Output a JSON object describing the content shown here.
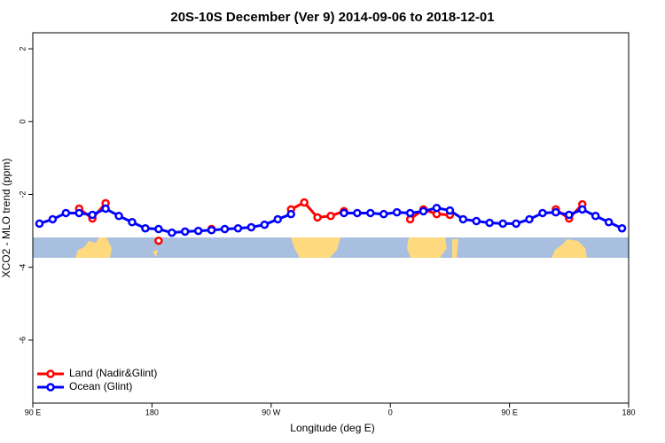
{
  "chart_data": {
    "type": "line",
    "title": "20S-10S December (Ver 9)   2014-09-06 to 2018-12-01",
    "x_label": "Longitude (deg E)",
    "y_label": "XCO2 - MLO trend (ppm)",
    "x": [
      95,
      105,
      115,
      125,
      135,
      145,
      155,
      165,
      175,
      185,
      195,
      205,
      215,
      225,
      235,
      245,
      255,
      265,
      275,
      285,
      295,
      305,
      315,
      325,
      335,
      345,
      355,
      365,
      375,
      385,
      395,
      405,
      415,
      425,
      435,
      445,
      455,
      465,
      475,
      485,
      495,
      505,
      515,
      525,
      535
    ],
    "series": [
      {
        "name": "Land (Nadir&Glint)",
        "color": "#ff0000",
        "values": [
          null,
          null,
          null,
          -2.39,
          -2.66,
          -2.24,
          null,
          null,
          null,
          -3.27,
          null,
          null,
          null,
          -2.95,
          null,
          null,
          null,
          null,
          null,
          -2.41,
          -2.22,
          -2.63,
          -2.59,
          -2.46,
          null,
          null,
          null,
          null,
          -2.68,
          -2.41,
          -2.54,
          -2.56,
          null,
          null,
          null,
          null,
          null,
          null,
          null,
          -2.41,
          -2.66,
          -2.27,
          null,
          null,
          null
        ]
      },
      {
        "name": "Ocean (Glint)",
        "color": "#0000ff",
        "values": [
          -2.8,
          -2.68,
          -2.51,
          -2.51,
          -2.56,
          -2.39,
          -2.59,
          -2.76,
          -2.93,
          -2.95,
          -3.05,
          -3.02,
          -3.0,
          -2.98,
          -2.95,
          -2.93,
          -2.9,
          -2.83,
          -2.68,
          -2.54,
          null,
          null,
          null,
          -2.51,
          -2.51,
          -2.51,
          -2.54,
          -2.49,
          -2.51,
          -2.46,
          -2.37,
          -2.44,
          -2.68,
          -2.73,
          -2.78,
          -2.8,
          -2.8,
          -2.68,
          -2.51,
          -2.49,
          -2.56,
          -2.41,
          -2.59,
          -2.76,
          -2.93
        ]
      }
    ],
    "xlim": [
      90,
      540
    ],
    "xticks": [
      {
        "value": 90,
        "label": "90 E"
      },
      {
        "value": 180,
        "label": "180"
      },
      {
        "value": 270,
        "label": "90 W"
      },
      {
        "value": 360,
        "label": "0"
      },
      {
        "value": 450,
        "label": "90 E"
      },
      {
        "value": 540,
        "label": "180"
      }
    ],
    "ylim": [
      -7.73,
      2.44
    ],
    "yticks": [
      -6,
      -4,
      -2,
      0,
      2
    ],
    "legend": "bottom-left"
  }
}
